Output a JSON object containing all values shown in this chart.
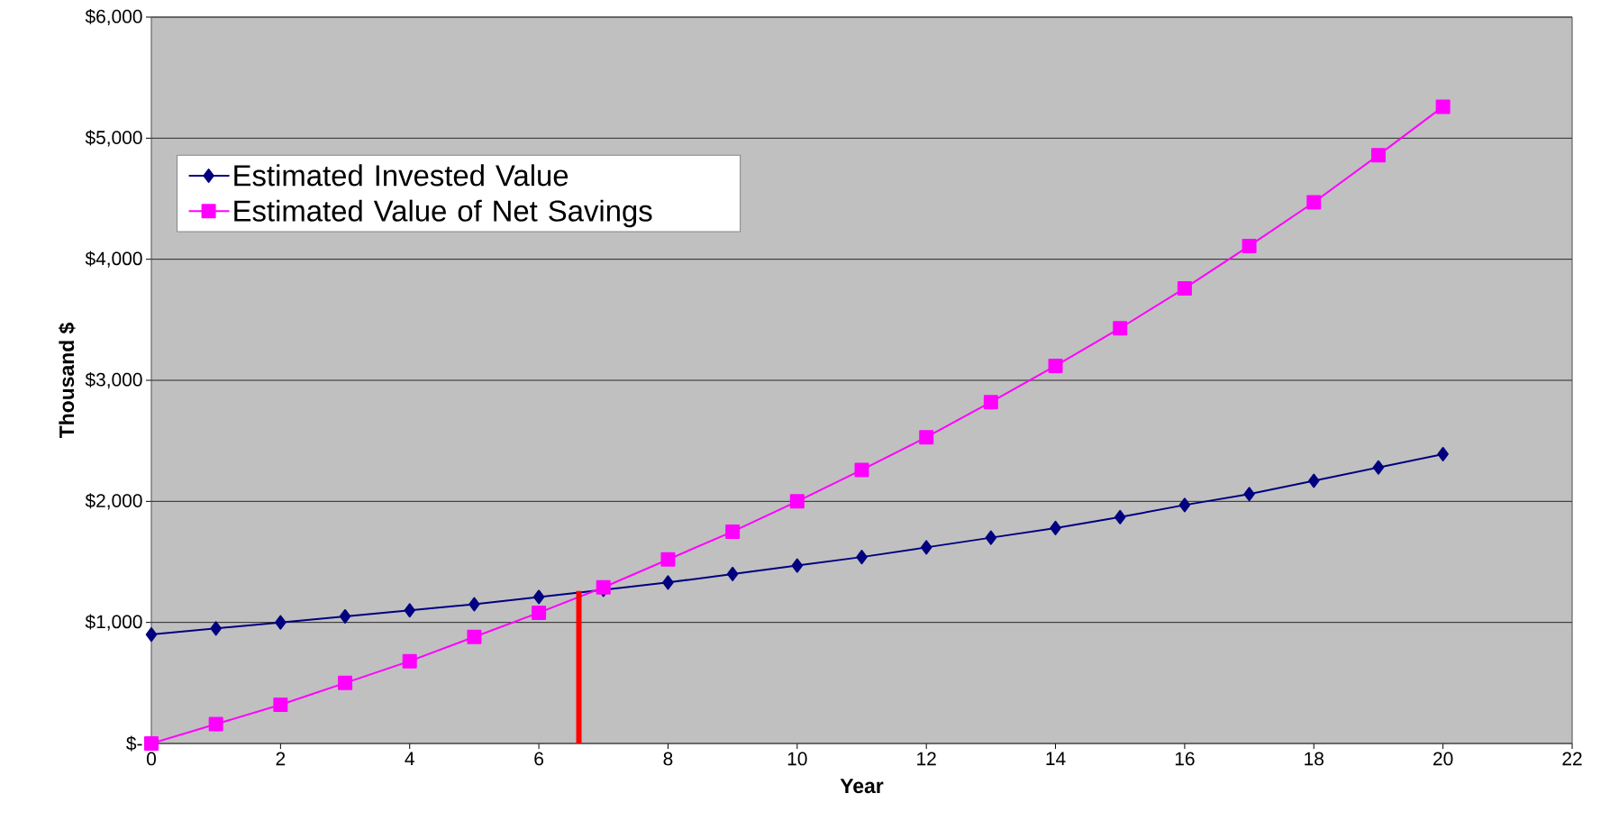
{
  "chart_data": {
    "type": "line",
    "xlabel": "Year",
    "ylabel": "Thousand $",
    "x": [
      0,
      1,
      2,
      3,
      4,
      5,
      6,
      7,
      8,
      9,
      10,
      11,
      12,
      13,
      14,
      15,
      16,
      17,
      18,
      19,
      20
    ],
    "series": [
      {
        "name": "Estimated Invested Value",
        "color": "#000080",
        "marker": "diamond",
        "values": [
          900,
          950,
          1000,
          1050,
          1100,
          1150,
          1210,
          1270,
          1330,
          1400,
          1470,
          1540,
          1620,
          1700,
          1780,
          1870,
          1970,
          2060,
          2170,
          2280,
          2390
        ]
      },
      {
        "name": "Estimated Value of Net Savings",
        "color": "#ff00ff",
        "marker": "square",
        "values": [
          0,
          160,
          320,
          500,
          680,
          880,
          1080,
          1290,
          1520,
          1750,
          2000,
          2260,
          2530,
          2820,
          3120,
          3430,
          3760,
          4110,
          4470,
          4860,
          5260
        ]
      },
      {
        "type": "line",
        "color": "#ff0000",
        "marker": "none",
        "x": [
          6.62,
          6.62
        ],
        "values": [
          0,
          1260
        ]
      }
    ],
    "xlim": [
      0,
      22
    ],
    "ylim": [
      0,
      6000
    ],
    "xticks": [
      0,
      2,
      4,
      6,
      8,
      10,
      12,
      14,
      16,
      18,
      20,
      22
    ],
    "yticks": [
      {
        "value": 0,
        "label": "$-"
      },
      {
        "value": 1000,
        "label": "$1,000"
      },
      {
        "value": 2000,
        "label": "$2,000"
      },
      {
        "value": 3000,
        "label": "$3,000"
      },
      {
        "value": 4000,
        "label": "$4,000"
      },
      {
        "value": 5000,
        "label": "$5,000"
      },
      {
        "value": 6000,
        "label": "$6,000"
      }
    ],
    "grid": "y",
    "legend": "top left"
  }
}
